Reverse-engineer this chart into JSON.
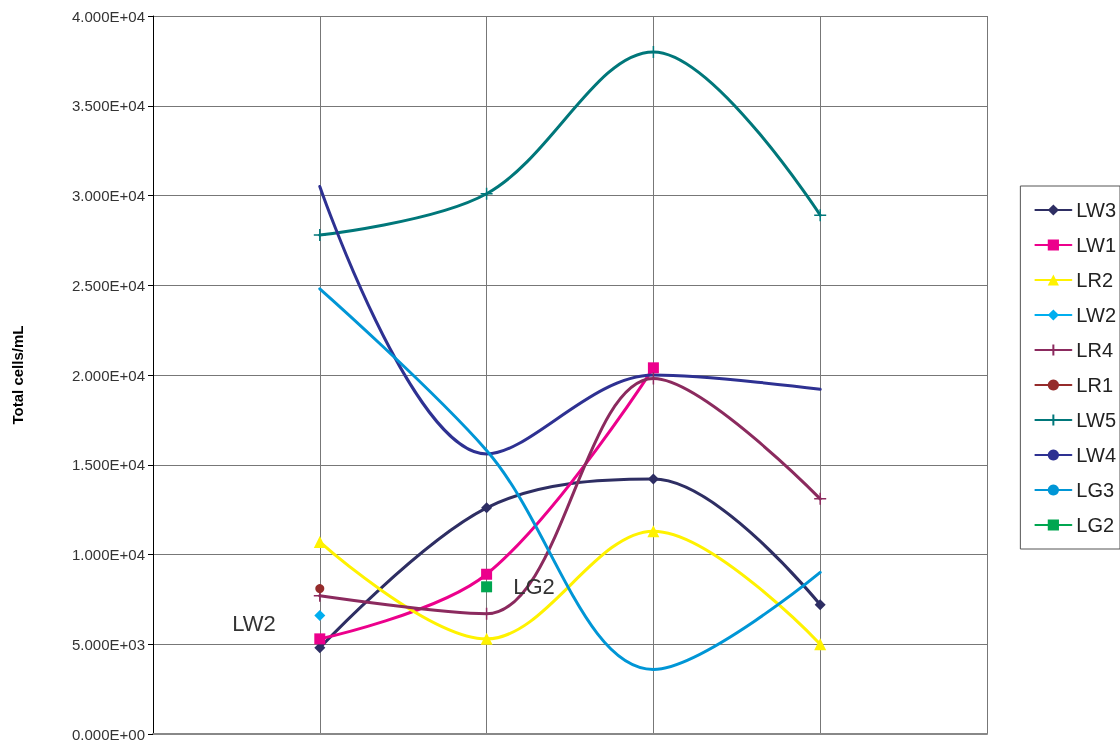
{
  "chart_data": {
    "type": "line",
    "ylabel": "Total cells/mL",
    "categories": [
      null,
      null,
      null,
      null,
      null,
      null
    ],
    "ylim": [
      0,
      40000
    ],
    "yticks": [
      {
        "value": 0,
        "label": "0.000E+00"
      },
      {
        "value": 5000,
        "label": "5.000E+03"
      },
      {
        "value": 10000,
        "label": "1.000E+04"
      },
      {
        "value": 15000,
        "label": "1.500E+04"
      },
      {
        "value": 20000,
        "label": "2.000E+04"
      },
      {
        "value": 25000,
        "label": "2.500E+04"
      },
      {
        "value": 30000,
        "label": "3.000E+04"
      },
      {
        "value": 35000,
        "label": "3.500E+04"
      },
      {
        "value": 40000,
        "label": "4.000E+04"
      }
    ],
    "grid": true,
    "legend": "right",
    "series": [
      {
        "name": "LW3",
        "color": "#2e2e63",
        "marker": "diamond",
        "values": [
          null,
          4800,
          12600,
          14200,
          7200,
          null
        ]
      },
      {
        "name": "LW1",
        "color": "#ec008c",
        "marker": "square",
        "values": [
          null,
          5300,
          8900,
          20400,
          null,
          null
        ]
      },
      {
        "name": "LR2",
        "color": "#fff200",
        "marker": "triangle",
        "values": [
          null,
          10700,
          5300,
          11300,
          5000,
          null
        ]
      },
      {
        "name": "LW2",
        "color": "#00aeef",
        "marker": "diamond",
        "values": [
          null,
          6600,
          null,
          null,
          null,
          null
        ]
      },
      {
        "name": "LR4",
        "color": "#8b2a5e",
        "marker": "cross",
        "values": [
          null,
          7700,
          6700,
          19800,
          13100,
          null
        ]
      },
      {
        "name": "LR1",
        "color": "#952b2b",
        "marker": "circle",
        "values": [
          null,
          8100,
          null,
          null,
          null,
          null
        ]
      },
      {
        "name": "LW5",
        "color": "#00777a",
        "marker": "cross",
        "values": [
          null,
          27800,
          30100,
          38000,
          28900,
          null
        ]
      },
      {
        "name": "LW4",
        "color": "#2e3192",
        "marker": "none",
        "values": [
          null,
          30500,
          15600,
          20000,
          19200,
          null
        ]
      },
      {
        "name": "LG3",
        "color": "#0096d6",
        "marker": "none",
        "values": [
          null,
          24800,
          15800,
          3600,
          9000,
          null
        ]
      },
      {
        "name": "LG2",
        "color": "#00a650",
        "marker": "square",
        "values": [
          null,
          null,
          8200,
          null,
          null,
          null
        ]
      }
    ],
    "annotations": [
      "LW2",
      "LG2"
    ]
  }
}
